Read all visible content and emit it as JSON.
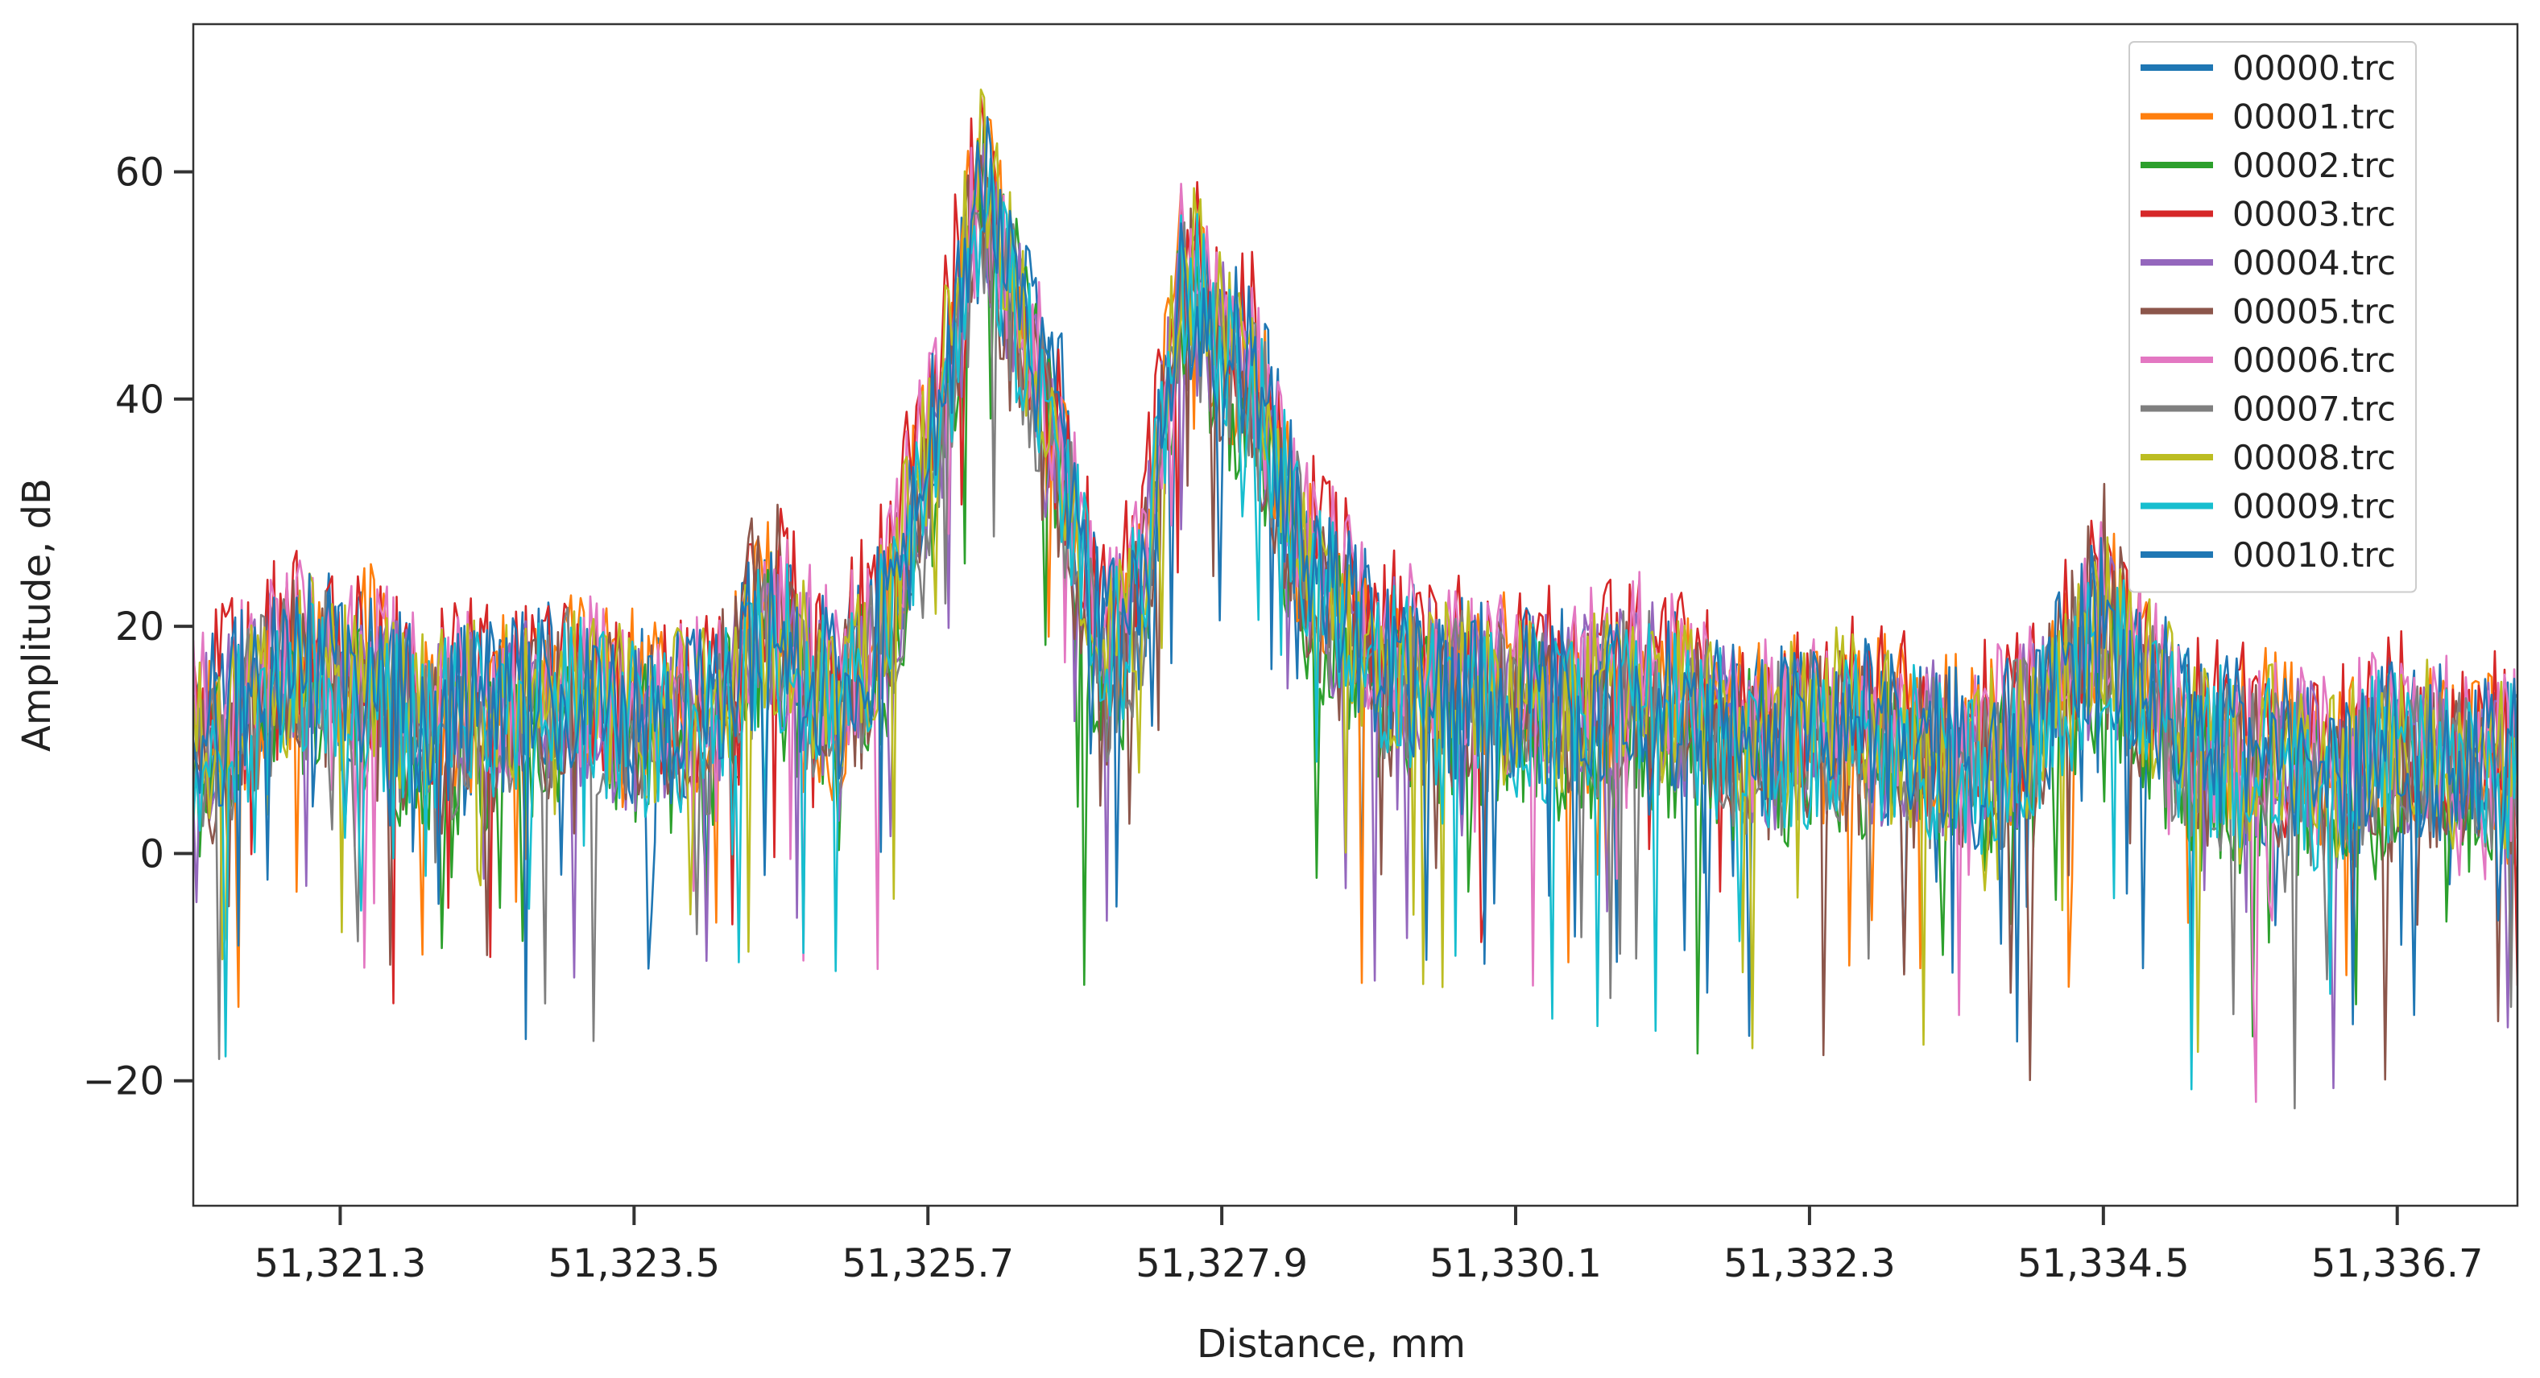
{
  "chart_data": {
    "type": "line",
    "title": "",
    "xlabel": "Distance, mm",
    "ylabel": "Amplitude, dB",
    "xlim": [
      51320.2,
      51337.6
    ],
    "ylim": [
      -31,
      73
    ],
    "x_ticks": [
      51321.3,
      51323.5,
      51325.7,
      51327.9,
      51330.1,
      51332.3,
      51334.5,
      51336.7
    ],
    "x_tick_labels": [
      "51,321.3",
      "51,323.5",
      "51,325.7",
      "51,327.9",
      "51,330.1",
      "51,332.3",
      "51,334.5",
      "51,336.7"
    ],
    "y_ticks": [
      -20,
      0,
      20,
      40,
      60
    ],
    "y_tick_labels": [
      "−20",
      "0",
      "20",
      "40",
      "60"
    ],
    "grid": false,
    "legend_position": "top-right",
    "x_samples": [
      51320.2,
      51320.6,
      51321.0,
      51321.5,
      51322.0,
      51322.5,
      51323.0,
      51323.5,
      51324.0,
      51324.5,
      51325.0,
      51325.4,
      51325.8,
      51326.1,
      51326.4,
      51326.7,
      51327.0,
      51327.3,
      51327.6,
      51327.9,
      51328.2,
      51328.5,
      51328.8,
      51329.1,
      51329.5,
      51330.0,
      51330.5,
      51331.0,
      51331.5,
      51332.0,
      51332.5,
      51333.0,
      51333.5,
      51334.0,
      51334.5,
      51334.8,
      51335.2,
      51335.7,
      51336.2,
      51336.7,
      51337.2,
      51337.6
    ],
    "series": [
      {
        "name": "00000.trc",
        "color": "#1f77b4",
        "values": [
          10,
          14,
          18,
          15,
          12,
          14,
          15,
          12,
          12,
          20,
          14,
          22,
          40,
          58,
          48,
          38,
          18,
          22,
          50,
          46,
          40,
          28,
          20,
          18,
          16,
          14,
          14,
          16,
          12,
          10,
          12,
          10,
          8,
          12,
          20,
          14,
          10,
          8,
          6,
          10,
          8,
          8
        ]
      },
      {
        "name": "00001.trc",
        "color": "#ff7f0e",
        "values": [
          8,
          12,
          16,
          18,
          10,
          13,
          16,
          14,
          10,
          22,
          12,
          20,
          42,
          62,
          46,
          34,
          16,
          24,
          52,
          44,
          42,
          26,
          22,
          16,
          14,
          16,
          12,
          14,
          14,
          12,
          10,
          12,
          10,
          10,
          22,
          16,
          8,
          12,
          8,
          8,
          10,
          6
        ]
      },
      {
        "name": "00002.trc",
        "color": "#2ca02c",
        "values": [
          6,
          10,
          14,
          12,
          8,
          10,
          12,
          10,
          8,
          18,
          10,
          18,
          36,
          60,
          50,
          30,
          12,
          20,
          48,
          42,
          36,
          24,
          18,
          14,
          12,
          12,
          10,
          12,
          10,
          8,
          10,
          8,
          6,
          8,
          18,
          12,
          6,
          6,
          4,
          6,
          6,
          4
        ]
      },
      {
        "name": "00003.trc",
        "color": "#d62728",
        "values": [
          12,
          16,
          20,
          16,
          14,
          15,
          17,
          13,
          14,
          24,
          16,
          24,
          44,
          64,
          44,
          36,
          20,
          26,
          56,
          48,
          44,
          30,
          24,
          20,
          18,
          16,
          16,
          18,
          14,
          12,
          14,
          12,
          10,
          14,
          24,
          18,
          12,
          10,
          8,
          12,
          10,
          10
        ]
      },
      {
        "name": "00004.trc",
        "color": "#9467bd",
        "values": [
          9,
          13,
          15,
          14,
          11,
          12,
          14,
          11,
          11,
          20,
          13,
          21,
          38,
          56,
          46,
          32,
          16,
          22,
          50,
          45,
          38,
          27,
          20,
          17,
          15,
          14,
          13,
          15,
          12,
          10,
          11,
          10,
          8,
          11,
          20,
          14,
          9,
          9,
          7,
          9,
          8,
          7
        ]
      },
      {
        "name": "00005.trc",
        "color": "#8c564b",
        "values": [
          7,
          11,
          17,
          13,
          9,
          11,
          13,
          12,
          9,
          26,
          11,
          19,
          40,
          58,
          42,
          33,
          14,
          21,
          54,
          43,
          37,
          25,
          19,
          15,
          13,
          13,
          11,
          13,
          11,
          9,
          10,
          9,
          7,
          9,
          26,
          13,
          7,
          8,
          6,
          7,
          7,
          5
        ]
      },
      {
        "name": "00006.trc",
        "color": "#e377c2",
        "values": [
          11,
          15,
          19,
          17,
          13,
          14,
          16,
          13,
          13,
          22,
          15,
          23,
          42,
          60,
          47,
          37,
          19,
          24,
          52,
          47,
          41,
          29,
          23,
          19,
          17,
          15,
          15,
          17,
          13,
          11,
          13,
          11,
          9,
          13,
          22,
          16,
          11,
          10,
          8,
          11,
          9,
          9
        ]
      },
      {
        "name": "00007.trc",
        "color": "#7f7f7f",
        "values": [
          8,
          12,
          16,
          14,
          10,
          12,
          14,
          11,
          10,
          19,
          12,
          20,
          38,
          57,
          45,
          33,
          15,
          21,
          49,
          44,
          38,
          26,
          20,
          16,
          14,
          13,
          12,
          14,
          11,
          9,
          11,
          9,
          7,
          10,
          19,
          13,
          8,
          8,
          6,
          8,
          7,
          6
        ]
      },
      {
        "name": "00008.trc",
        "color": "#bcbd22",
        "values": [
          10,
          13,
          17,
          15,
          12,
          13,
          15,
          12,
          12,
          21,
          13,
          21,
          40,
          63,
          48,
          35,
          17,
          23,
          55,
          45,
          40,
          28,
          21,
          17,
          15,
          14,
          13,
          15,
          12,
          10,
          12,
          10,
          8,
          11,
          21,
          15,
          10,
          9,
          7,
          10,
          8,
          8
        ]
      },
      {
        "name": "00009.trc",
        "color": "#17becf",
        "values": [
          9,
          12,
          15,
          13,
          11,
          12,
          14,
          11,
          11,
          20,
          12,
          20,
          38,
          58,
          46,
          34,
          16,
          22,
          51,
          44,
          39,
          26,
          20,
          16,
          14,
          13,
          12,
          14,
          11,
          9,
          11,
          9,
          7,
          10,
          20,
          14,
          9,
          8,
          6,
          9,
          7,
          7
        ]
      },
      {
        "name": "00010.trc",
        "color": "#1f77b4",
        "values": [
          10,
          14,
          17,
          15,
          12,
          13,
          15,
          12,
          12,
          20,
          13,
          21,
          40,
          59,
          47,
          36,
          18,
          22,
          50,
          46,
          40,
          28,
          21,
          18,
          15,
          14,
          13,
          15,
          12,
          10,
          12,
          10,
          8,
          12,
          21,
          15,
          10,
          9,
          7,
          10,
          8,
          8
        ]
      }
    ]
  }
}
